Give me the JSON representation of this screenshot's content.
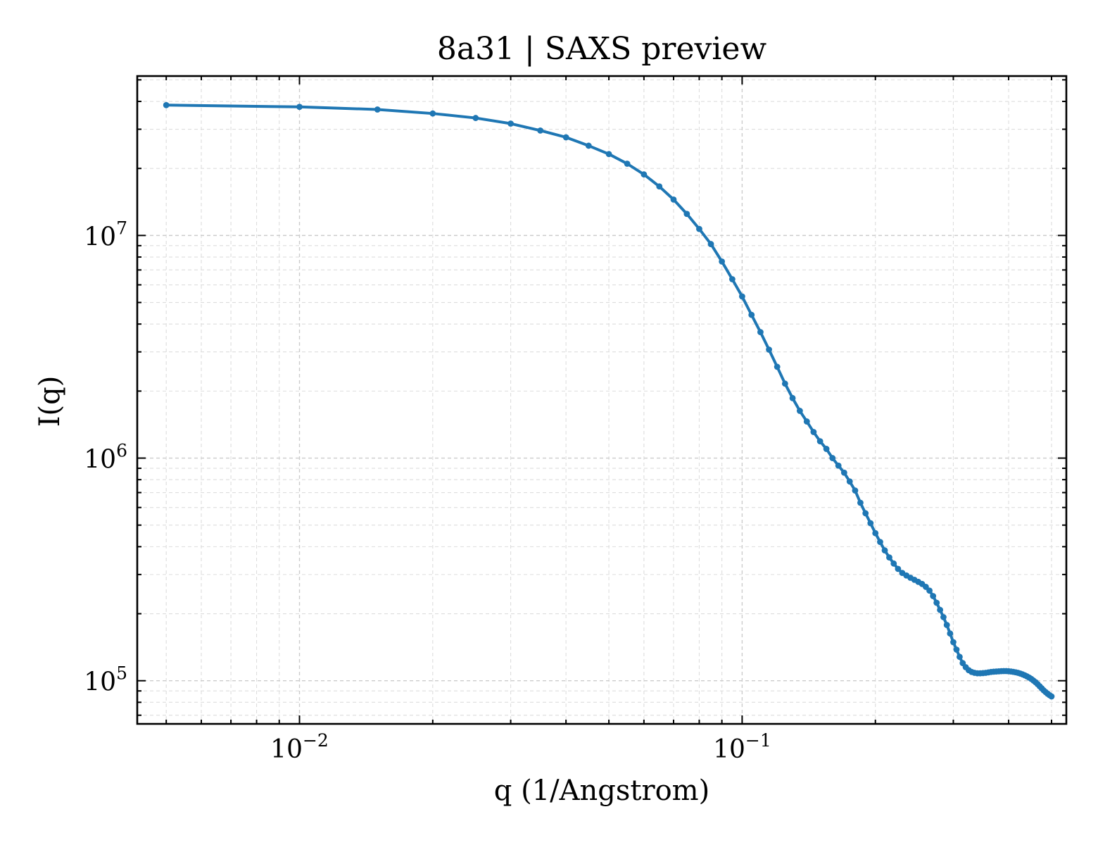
{
  "chart_data": {
    "type": "line",
    "title": "8a31 | SAXS preview",
    "xlabel": "q (1/Angstrom)",
    "ylabel": "I(q)",
    "x_scale": "log",
    "y_scale": "log",
    "xlim": [
      0.0043,
      0.54
    ],
    "ylim": [
      64000,
      52000000
    ],
    "x_ticks": [
      {
        "value": 0.01,
        "base": "10",
        "exp": "−2"
      },
      {
        "value": 0.1,
        "base": "10",
        "exp": "−1"
      }
    ],
    "y_ticks": [
      {
        "value": 100000,
        "base": "10",
        "exp": "5"
      },
      {
        "value": 1000000,
        "base": "10",
        "exp": "6"
      },
      {
        "value": 10000000,
        "base": "10",
        "exp": "7"
      }
    ],
    "grid": true,
    "line_color": "#1f77b4",
    "series": [
      {
        "x": [
          0.005,
          0.01,
          0.015,
          0.02,
          0.025,
          0.03,
          0.035,
          0.04,
          0.045,
          0.05,
          0.055,
          0.06,
          0.065,
          0.07,
          0.075,
          0.08,
          0.085,
          0.09,
          0.095,
          0.1,
          0.105,
          0.11,
          0.115,
          0.12,
          0.125,
          0.13,
          0.135,
          0.14,
          0.145,
          0.15,
          0.155,
          0.16,
          0.165,
          0.17,
          0.175,
          0.18,
          0.185,
          0.19,
          0.195,
          0.2,
          0.205,
          0.21,
          0.215,
          0.22,
          0.225,
          0.23,
          0.235,
          0.24,
          0.245,
          0.25,
          0.255,
          0.26,
          0.265,
          0.27,
          0.275,
          0.28,
          0.285,
          0.29,
          0.295,
          0.3,
          0.305,
          0.31,
          0.315,
          0.32,
          0.325,
          0.33,
          0.335,
          0.34,
          0.345,
          0.35,
          0.355,
          0.36,
          0.365,
          0.37,
          0.375,
          0.38,
          0.385,
          0.39,
          0.395,
          0.4,
          0.405,
          0.41,
          0.415,
          0.42,
          0.425,
          0.43,
          0.435,
          0.44,
          0.445,
          0.45,
          0.455,
          0.46,
          0.465,
          0.47,
          0.475,
          0.48,
          0.485,
          0.49,
          0.495,
          0.5
        ],
        "y": [
          38500000,
          37800000,
          36800000,
          35300000,
          33700000,
          31800000,
          29600000,
          27600000,
          25300000,
          23200000,
          21000000,
          18800000,
          16600000,
          14500000,
          12500000,
          10700000,
          9150000,
          7640000,
          6360000,
          5320000,
          4400000,
          3680000,
          3070000,
          2570000,
          2160000,
          1860000,
          1630000,
          1460000,
          1310000,
          1190000,
          1100000,
          1000000,
          925000,
          860000,
          785000,
          715000,
          630000,
          565000,
          510000,
          460000,
          420000,
          385000,
          358000,
          336000,
          318000,
          305000,
          297000,
          290000,
          284000,
          278000,
          272000,
          264000,
          254000,
          240000,
          224000,
          208000,
          193000,
          178000,
          163000,
          149000,
          138000,
          128000,
          120000,
          115000,
          111500,
          109500,
          108500,
          108000,
          108000,
          108200,
          108500,
          109000,
          109500,
          109800,
          110000,
          110200,
          110400,
          110500,
          110500,
          110300,
          110000,
          109600,
          109100,
          108500,
          107700,
          106800,
          105800,
          104600,
          103300,
          101900,
          100200,
          98500,
          96600,
          94500,
          92500,
          90500,
          88900,
          87400,
          86100,
          85000
        ]
      }
    ]
  }
}
